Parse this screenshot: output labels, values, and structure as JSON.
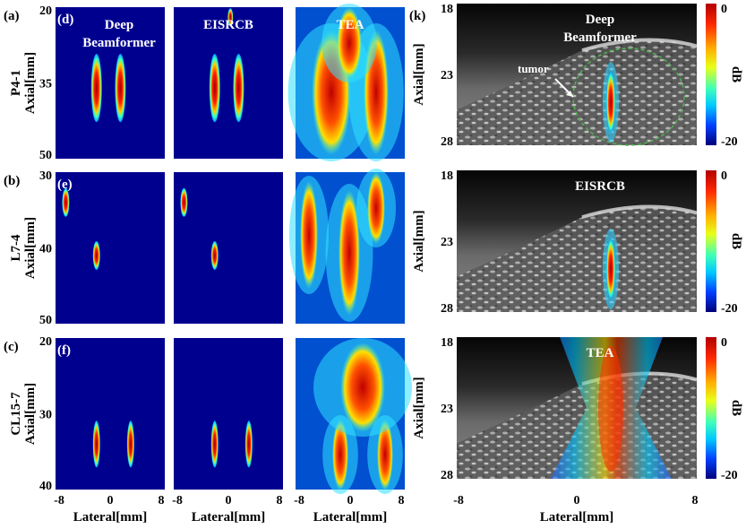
{
  "figure": {
    "rows": [
      {
        "panel_label": "(a)",
        "probe": "P4-1",
        "heat_label": "(d)",
        "y_ticks": [
          "20",
          "35",
          "50"
        ],
        "ylabel": "Axial[mm]"
      },
      {
        "panel_label": "(b)",
        "probe": "L7-4",
        "heat_label": "(e)",
        "y_ticks": [
          "30",
          "40",
          "50"
        ],
        "ylabel": "Axial[mm]"
      },
      {
        "panel_label": "(c)",
        "probe": "CL15-7",
        "heat_label": "(f)",
        "y_ticks": [
          "20",
          "30",
          "40"
        ],
        "ylabel": "Axial[mm]"
      }
    ],
    "columns": [
      {
        "title_line1": "Deep",
        "title_line2": "Beamformer"
      },
      {
        "title_line1": "EISRCB",
        "title_line2": ""
      },
      {
        "title_line1": "TEA",
        "title_line2": ""
      }
    ],
    "x_ticks": [
      "-8",
      "0",
      "8"
    ],
    "xlabel": "Lateral[mm]",
    "right": {
      "panel_label": "(k)",
      "titles": [
        [
          "Deep",
          "Beamformer"
        ],
        [
          "EISRCB"
        ],
        [
          "TEA"
        ]
      ],
      "y_ticks": [
        "18",
        "23",
        "28"
      ],
      "ylabel": "Axial[mm]",
      "x_ticks": [
        "-8",
        "0",
        "8"
      ],
      "xlabel": "Lateral[mm]",
      "annotation": "tumor",
      "colorbar": {
        "max_label": "0",
        "min_label": "-20",
        "unit": "dB"
      }
    },
    "colors": {
      "background": "#00008f",
      "ellipse": "#4fb34f"
    }
  },
  "chart_data": [
    {
      "type": "heatmap",
      "title": "Deep Beamformer",
      "probe": "P4-1",
      "targets_mm": [
        [
          -2.0,
          36
        ],
        [
          1.5,
          36
        ]
      ],
      "ylim": [
        50,
        20
      ],
      "xlim": [
        -8,
        8
      ]
    },
    {
      "type": "heatmap",
      "title": "EISRCB",
      "probe": "P4-1",
      "targets_mm": [
        [
          -2.0,
          36
        ],
        [
          1.5,
          36
        ],
        [
          0.3,
          22
        ]
      ],
      "ylim": [
        50,
        20
      ],
      "xlim": [
        -8,
        8
      ]
    },
    {
      "type": "heatmap",
      "title": "TEA",
      "probe": "P4-1",
      "ylim": [
        50,
        20
      ],
      "xlim": [
        -8,
        8
      ]
    },
    {
      "type": "heatmap",
      "title": "Deep Beamformer",
      "probe": "L7-4",
      "targets_mm": [
        [
          -6.5,
          34
        ],
        [
          -2.0,
          41
        ]
      ],
      "ylim": [
        50,
        30
      ],
      "xlim": [
        -8,
        8
      ]
    },
    {
      "type": "heatmap",
      "title": "EISRCB",
      "probe": "L7-4",
      "targets_mm": [
        [
          -6.5,
          34
        ],
        [
          -2.0,
          41
        ]
      ],
      "ylim": [
        50,
        30
      ],
      "xlim": [
        -8,
        8
      ]
    },
    {
      "type": "heatmap",
      "title": "TEA",
      "probe": "L7-4",
      "ylim": [
        50,
        30
      ],
      "xlim": [
        -8,
        8
      ]
    },
    {
      "type": "heatmap",
      "title": "Deep Beamformer",
      "probe": "CL15-7",
      "targets_mm": [
        [
          -2.0,
          34
        ],
        [
          3.0,
          34
        ]
      ],
      "ylim": [
        40,
        20
      ],
      "xlim": [
        -8,
        8
      ]
    },
    {
      "type": "heatmap",
      "title": "EISRCB",
      "probe": "CL15-7",
      "targets_mm": [
        [
          -2.0,
          34
        ],
        [
          3.0,
          34
        ]
      ],
      "ylim": [
        40,
        20
      ],
      "xlim": [
        -8,
        8
      ]
    },
    {
      "type": "heatmap",
      "title": "TEA",
      "probe": "CL15-7",
      "ylim": [
        40,
        20
      ],
      "xlim": [
        -8,
        8
      ]
    },
    {
      "type": "heatmap",
      "title": "Deep Beamformer overlay",
      "xlim": [
        -8,
        8
      ],
      "ylim": [
        28,
        18
      ],
      "colorbar_range_db": [
        -20,
        0
      ]
    },
    {
      "type": "heatmap",
      "title": "EISRCB overlay",
      "xlim": [
        -8,
        8
      ],
      "ylim": [
        28,
        18
      ],
      "colorbar_range_db": [
        -20,
        0
      ]
    },
    {
      "type": "heatmap",
      "title": "TEA overlay",
      "xlim": [
        -8,
        8
      ],
      "ylim": [
        28,
        18
      ],
      "colorbar_range_db": [
        -20,
        0
      ]
    }
  ]
}
